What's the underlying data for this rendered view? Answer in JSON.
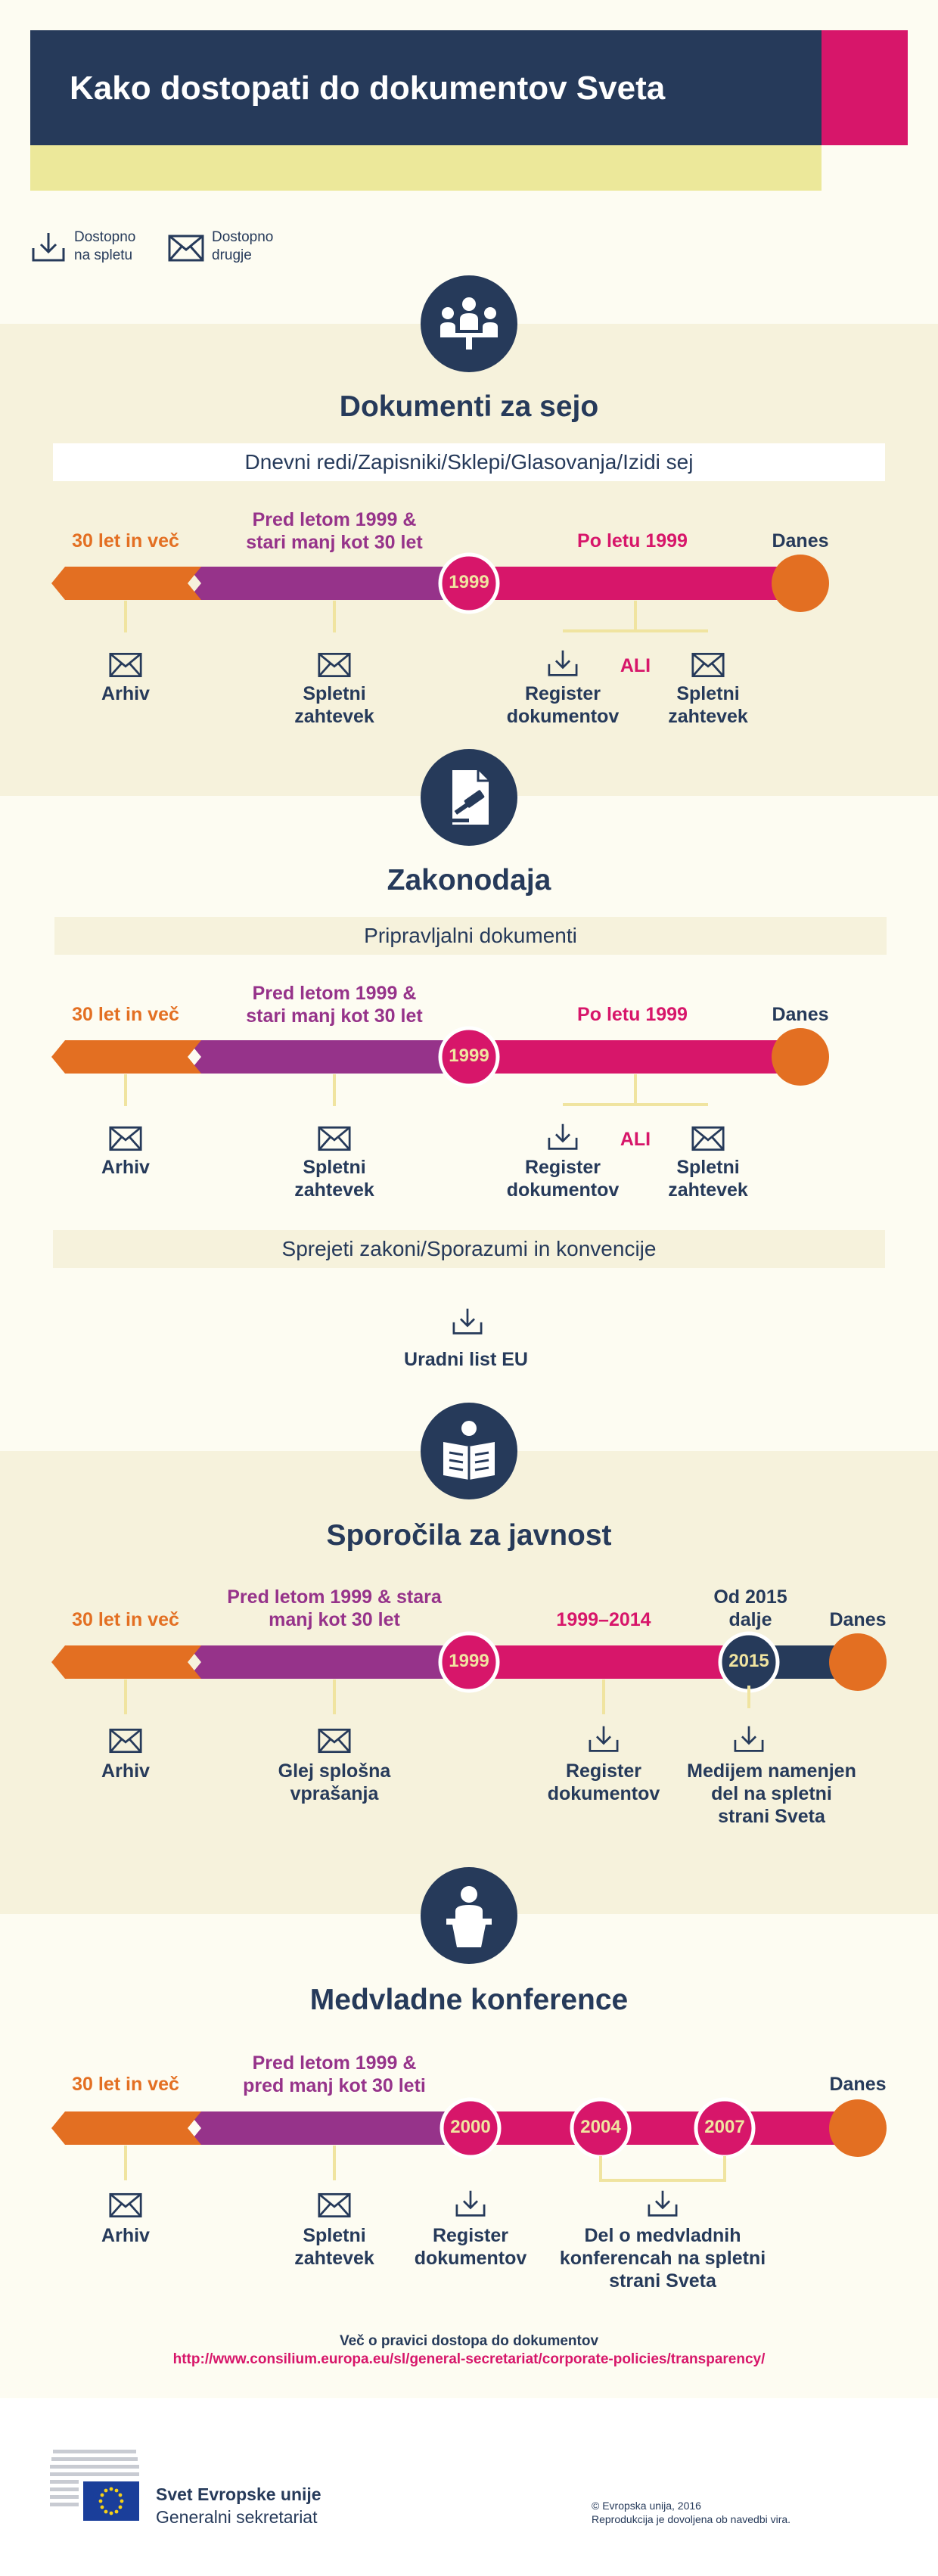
{
  "header": {
    "title": "Kako dostopati do dokumentov Sveta"
  },
  "legend": {
    "online": "Dostopno\nna spletu",
    "other": "Dostopno\ndrugje"
  },
  "sections": {
    "s1": {
      "title": "Dokumenti za sejo",
      "subtitle": "Dnevni redi/Zapisniki/Sklepi/Glasovanja/Izidi sej",
      "period1": "30 let in več",
      "period2": "Pred letom 1999 &\nstari manj kot 30 let",
      "period3": "Po letu 1999",
      "today": "Danes",
      "year": "1999",
      "node1": "Arhiv",
      "node2": "Spletni\nzahtevek",
      "node3": "Register\ndokumentov",
      "or": "ALI",
      "node4": "Spletni\nzahtevek"
    },
    "s2": {
      "title": "Zakonodaja",
      "subtitle": "Pripravljalni dokumenti",
      "period1": "30 let in več",
      "period2": "Pred letom 1999 &\nstari manj kot 30 let",
      "period3": "Po letu 1999",
      "today": "Danes",
      "year": "1999",
      "node1": "Arhiv",
      "node2": "Spletni\nzahtevek",
      "node3": "Register\ndokumentov",
      "or": "ALI",
      "node4": "Spletni\nzahtevek",
      "subtitle2": "Sprejeti zakoni/Sporazumi in konvencije",
      "node5": "Uradni list EU"
    },
    "s3": {
      "title": "Sporočila za javnost",
      "period1": "30 let in več",
      "period2": "Pred letom 1999 & stara\nmanj kot 30 let",
      "period3": "1999–2014",
      "period4": "Od 2015\ndalje",
      "today": "Danes",
      "year1": "1999",
      "year2": "2015",
      "node1": "Arhiv",
      "node2": "Glej splošna\nvprašanja",
      "node3": "Register\ndokumentov",
      "node4": "Medijem namenjen\ndel na spletni\nstrani Sveta"
    },
    "s4": {
      "title": "Medvladne konference",
      "period1": "30 let in več",
      "period2": "Pred letom 1999 &\npred manj kot 30 leti",
      "today": "Danes",
      "year1": "2000",
      "year2": "2004",
      "year3": "2007",
      "node1": "Arhiv",
      "node2": "Spletni\nzahtevek",
      "node3": "Register\ndokumentov",
      "node4": "Del o medvladnih\nkonferencah na spletni\nstrani Sveta"
    }
  },
  "footer": {
    "more_text": "Več o pravici dostopa do dokumentov",
    "link": "http://www.consilium.europa.eu/sl/general-secretariat/corporate-policies/transparency/",
    "org_name": "Svet Evropske unije",
    "org_sub": "Generalni sekretariat",
    "copyright": "© Evropska unija, 2016",
    "reproduction": "Reprodukcija je dovoljena ob navedbi vira."
  },
  "colors": {
    "navy": "#263a5a",
    "pink": "#d7166a",
    "orange": "#e36f22",
    "purple": "#96338a",
    "yellow": "#ece89a",
    "cream": "#f6f2dc"
  },
  "icons": [
    "download-icon",
    "envelope-icon",
    "meeting-icon",
    "gavel-document-icon",
    "newspaper-icon",
    "podium-icon",
    "eu-flag-icon"
  ]
}
